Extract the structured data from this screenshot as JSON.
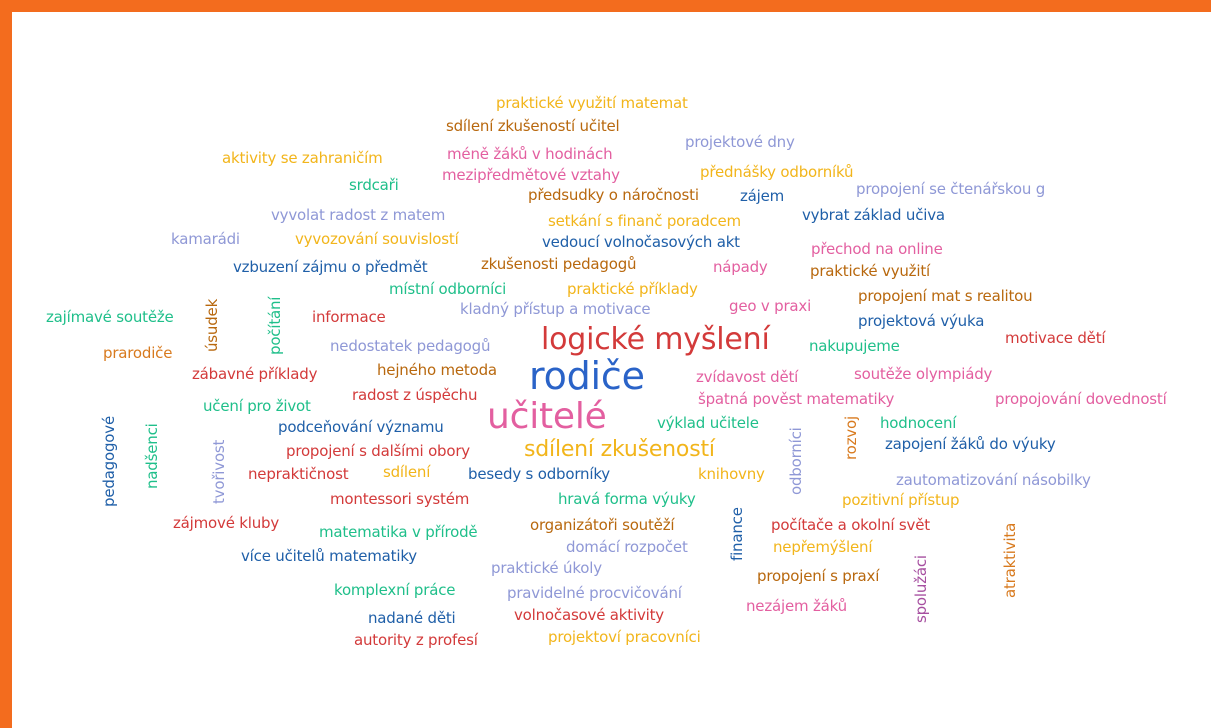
{
  "colors": {
    "border": "#f36c1e",
    "yellow": "#f2b51b",
    "brown": "#b8680e",
    "pink": "#e35fa0",
    "lavender": "#8f98d6",
    "navy": "#1f5fa8",
    "green": "#1fbf8a",
    "red": "#d33a3a",
    "orange": "#d87a1e",
    "blue": "#2a63c8",
    "gray": "#9aa3c0",
    "purple": "#a64fa0"
  },
  "words": [
    {
      "text": "praktické využití matemat",
      "color": "yellow"
    },
    {
      "text": "sdílení zkušeností učitel",
      "color": "brown"
    },
    {
      "text": "projektové dny",
      "color": "lavender"
    },
    {
      "text": "méně žáků v hodinách",
      "color": "pink"
    },
    {
      "text": "aktivity se zahraničím",
      "color": "yellow"
    },
    {
      "text": "mezipředmětové vztahy",
      "color": "pink"
    },
    {
      "text": "přednášky odborníků",
      "color": "yellow"
    },
    {
      "text": "srdcaři",
      "color": "green"
    },
    {
      "text": "předsudky o náročnosti",
      "color": "brown"
    },
    {
      "text": "zájem",
      "color": "navy"
    },
    {
      "text": "propojení se čtenářskou g",
      "color": "lavender"
    },
    {
      "text": "vyvolat radost z matem",
      "color": "lavender"
    },
    {
      "text": "setkání s finanč poradcem",
      "color": "yellow"
    },
    {
      "text": "vybrat základ učiva",
      "color": "navy"
    },
    {
      "text": "kamarádi",
      "color": "lavender"
    },
    {
      "text": "vyvozování souvislostí",
      "color": "yellow"
    },
    {
      "text": "vedoucí volnočasových akt",
      "color": "navy"
    },
    {
      "text": "přechod na online",
      "color": "pink"
    },
    {
      "text": "vzbuzení zájmu o předmět",
      "color": "navy"
    },
    {
      "text": "zkušenosti pedagogů",
      "color": "brown"
    },
    {
      "text": "nápady",
      "color": "pink"
    },
    {
      "text": "praktické využití",
      "color": "brown"
    },
    {
      "text": "místní odborníci",
      "color": "green"
    },
    {
      "text": "praktické příklady",
      "color": "yellow"
    },
    {
      "text": "propojení mat s realitou",
      "color": "brown"
    },
    {
      "text": "zajímavé soutěže",
      "color": "green"
    },
    {
      "text": "úsudek",
      "color": "brown"
    },
    {
      "text": "počítání",
      "color": "green"
    },
    {
      "text": "informace",
      "color": "red"
    },
    {
      "text": "kladný přístup a motivace",
      "color": "lavender"
    },
    {
      "text": "geo v praxi",
      "color": "pink"
    },
    {
      "text": "projektová výuka",
      "color": "navy"
    },
    {
      "text": "logické myšlení",
      "color": "red"
    },
    {
      "text": "motivace dětí",
      "color": "red"
    },
    {
      "text": "prarodiče",
      "color": "orange"
    },
    {
      "text": "nedostatek pedagogů",
      "color": "lavender"
    },
    {
      "text": "nakupujeme",
      "color": "green"
    },
    {
      "text": "zábavné příklady",
      "color": "red"
    },
    {
      "text": "hejného metoda",
      "color": "brown"
    },
    {
      "text": "rodiče",
      "color": "blue"
    },
    {
      "text": "zvídavost dětí",
      "color": "pink"
    },
    {
      "text": "soutěže olympiády",
      "color": "pink"
    },
    {
      "text": "radost z úspěchu",
      "color": "red"
    },
    {
      "text": "špatná pověst matematiky",
      "color": "pink"
    },
    {
      "text": "propojování dovedností",
      "color": "pink"
    },
    {
      "text": "pedagogové",
      "color": "navy"
    },
    {
      "text": "učení pro život",
      "color": "green"
    },
    {
      "text": "nadšenci",
      "color": "green"
    },
    {
      "text": "učitelé",
      "color": "pink"
    },
    {
      "text": "výklad učitele",
      "color": "green"
    },
    {
      "text": "hodnocení",
      "color": "green"
    },
    {
      "text": "podceňování významu",
      "color": "navy"
    },
    {
      "text": "rozvoj",
      "color": "orange"
    },
    {
      "text": "zapojení žáků do výuky",
      "color": "navy"
    },
    {
      "text": "tvořivost",
      "color": "lavender"
    },
    {
      "text": "odborníci",
      "color": "lavender"
    },
    {
      "text": "sdílení zkušeností",
      "color": "yellow"
    },
    {
      "text": "propojení s dalšími obory",
      "color": "red"
    },
    {
      "text": "nepraktičnost",
      "color": "red"
    },
    {
      "text": "sdílení",
      "color": "yellow"
    },
    {
      "text": "besedy s odborníky",
      "color": "navy"
    },
    {
      "text": "knihovny",
      "color": "yellow"
    },
    {
      "text": "zautomatizování násobilky",
      "color": "lavender"
    },
    {
      "text": "montessori systém",
      "color": "red"
    },
    {
      "text": "hravá forma výuky",
      "color": "green"
    },
    {
      "text": "pozitivní přístup",
      "color": "yellow"
    },
    {
      "text": "finance",
      "color": "navy"
    },
    {
      "text": "zájmové kluby",
      "color": "red"
    },
    {
      "text": "organizátoři soutěží",
      "color": "brown"
    },
    {
      "text": "počítače a okolní svět",
      "color": "red"
    },
    {
      "text": "atraktivita",
      "color": "orange"
    },
    {
      "text": "matematika v přírodě",
      "color": "green"
    },
    {
      "text": "domácí rozpočet",
      "color": "lavender"
    },
    {
      "text": "nepřemýšlení",
      "color": "yellow"
    },
    {
      "text": "více učitelů matematiky",
      "color": "navy"
    },
    {
      "text": "praktické úkoly",
      "color": "lavender"
    },
    {
      "text": "spolužáci",
      "color": "purple"
    },
    {
      "text": "propojení s praxí",
      "color": "brown"
    },
    {
      "text": "komplexní práce",
      "color": "green"
    },
    {
      "text": "pravidelné procvičování",
      "color": "lavender"
    },
    {
      "text": "nezájem žáků",
      "color": "pink"
    },
    {
      "text": "nadané děti",
      "color": "navy"
    },
    {
      "text": "volnočasové aktivity",
      "color": "red"
    },
    {
      "text": "autority z profesí",
      "color": "red"
    },
    {
      "text": "projektoví pracovníci",
      "color": "yellow"
    }
  ]
}
